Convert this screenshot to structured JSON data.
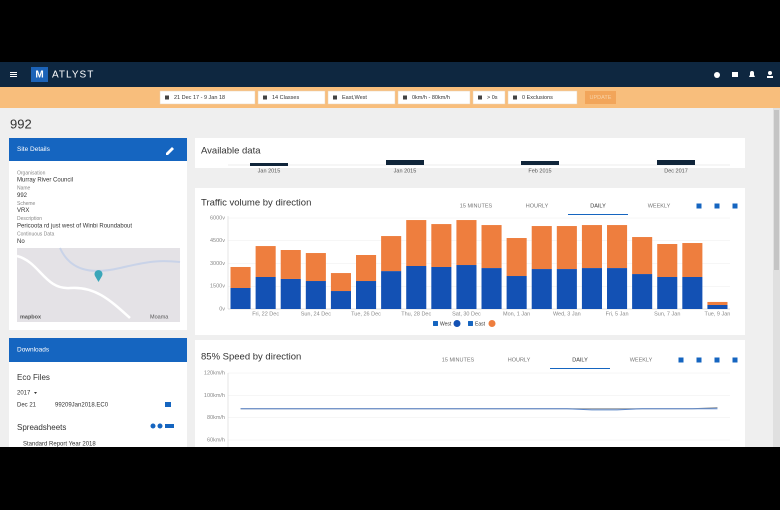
{
  "nav": {
    "brand": "ATLYST"
  },
  "filters": [
    "21 Dec 17 - 9 Jan 18",
    "14 Classes",
    "East,West",
    "0km/h - 80km/h",
    "> 0s",
    "0 Exclusions"
  ],
  "update_button": "UPDATE",
  "page_title": "992",
  "site_details": {
    "header": "Site Details",
    "fields": [
      {
        "label": "Organisation",
        "value": "Murray River Council"
      },
      {
        "label": "Name",
        "value": "992"
      },
      {
        "label": "Scheme",
        "value": "VRX"
      },
      {
        "label": "Description",
        "value": "Pericoota rd just west of Winbi Roundabout"
      },
      {
        "label": "Continuous Data",
        "value": "No"
      }
    ],
    "map_labels": [
      "mapbox",
      "Moama"
    ]
  },
  "downloads": {
    "header": "Downloads",
    "eco_title": "Eco Files",
    "year": "2017",
    "files": [
      {
        "date": "Dec 21",
        "name": "99209Jan2018.EC0"
      }
    ],
    "spreadsheets_title": "Spreadsheets",
    "spreadsheets": [
      "Standard Report Year 2018"
    ]
  },
  "available_data": {
    "title": "Available data",
    "labels": [
      "Jan 2015",
      "Jan 2015",
      "Feb 2015",
      "Dec 2017"
    ]
  },
  "traffic_chart": {
    "type": "bar",
    "stacked": true,
    "title": "Traffic volume by direction",
    "tabs": [
      "15 MINUTES",
      "HOURLY",
      "DAILY",
      "WEEKLY"
    ],
    "active_tab": "DAILY",
    "categories": [
      null,
      "Fri, 22 Dec",
      null,
      "Sun, 24 Dec",
      null,
      "Tue, 26 Dec",
      null,
      "Thu, 28 Dec",
      null,
      "Sat, 30 Dec",
      null,
      "Mon, 1 Jan",
      null,
      "Wed, 3 Jan",
      null,
      "Fri, 5 Jan",
      null,
      "Sun, 7 Jan",
      null,
      "Tue, 9 Jan"
    ],
    "series": [
      {
        "name": "West",
        "color": "#1351b4",
        "values": [
          1385,
          2110,
          1980,
          1845,
          1185,
          1845,
          2500,
          2835,
          2770,
          2900,
          2700,
          2175,
          2635,
          2635,
          2700,
          2700,
          2305,
          2110,
          2110,
          265
        ]
      },
      {
        "name": "East",
        "color": "#ee7e3e",
        "values": [
          1385,
          2040,
          1910,
          1845,
          1185,
          1715,
          2310,
          3030,
          2830,
          2965,
          2835,
          2505,
          2835,
          2835,
          2835,
          2835,
          2440,
          2175,
          2240,
          200
        ]
      }
    ],
    "ylim": [
      0,
      6000
    ],
    "yticks": [
      {
        "value": 0,
        "label": "0v"
      },
      {
        "value": 1500,
        "label": "1500v"
      },
      {
        "value": 3000,
        "label": "3000v"
      },
      {
        "value": 4500,
        "label": "4500v"
      },
      {
        "value": 6000,
        "label": "6000v"
      }
    ],
    "grid": true
  },
  "speed_chart": {
    "type": "line",
    "title": "85% Speed by direction",
    "tabs": [
      "15 MINUTES",
      "HOURLY",
      "DAILY",
      "WEEKLY"
    ],
    "active_tab": "DAILY",
    "series": [
      {
        "color": "#8e949a",
        "values": [
          88,
          88,
          88,
          88,
          88,
          88,
          88,
          88,
          88,
          88,
          88,
          88,
          88,
          88,
          88,
          88,
          88,
          88,
          88,
          89
        ]
      },
      {
        "color": "#5b86c9",
        "values": [
          88,
          88,
          88,
          88,
          88,
          88,
          88,
          88,
          88,
          88,
          88,
          88,
          88,
          88,
          87,
          87,
          88,
          88,
          88,
          88
        ]
      }
    ],
    "ylim": [
      60,
      120
    ],
    "yticks": [
      {
        "value": 60,
        "label": "60km/h"
      },
      {
        "value": 80,
        "label": "80km/h"
      },
      {
        "value": 100,
        "label": "100km/h"
      },
      {
        "value": 120,
        "label": "120km/h"
      }
    ],
    "grid": true
  }
}
